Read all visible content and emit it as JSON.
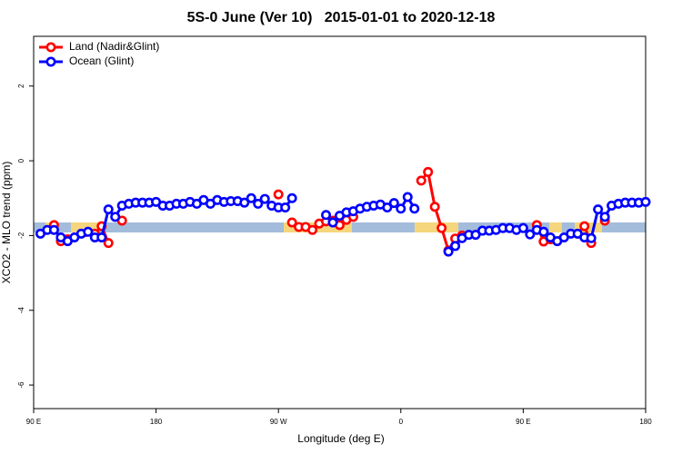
{
  "chart_data": {
    "type": "line",
    "title": "5S-0 June (Ver 10)   2015-01-01 to 2020-12-18",
    "x_label": "Longitude (deg E)",
    "y_label": "XCO2 - MLO trend (ppm)",
    "xlim": [
      90,
      540
    ],
    "xticks": [
      {
        "value": 90,
        "label": "90 E"
      },
      180,
      {
        "value": 270,
        "label": "90 W"
      },
      {
        "value": 360,
        "label": "0"
      },
      {
        "value": 450,
        "label": "90 E"
      },
      {
        "value": 540,
        "label": "180"
      }
    ],
    "ylim": [
      -6.63,
      3.33
    ],
    "yticks": [
      2,
      0,
      -2,
      -4,
      -6
    ],
    "legend_position": "top-left",
    "series": [
      {
        "name": "Land (Nadir&Glint)",
        "color": "#ff0000",
        "x": [
          105,
          110,
          115,
          135,
          140,
          145,
          150,
          155,
          160,
          270,
          275,
          280,
          285,
          290,
          295,
          300,
          305,
          310,
          315,
          320,
          325,
          330,
          375,
          380,
          385,
          390,
          395,
          400,
          405,
          410,
          460,
          465,
          470,
          490,
          495,
          500,
          505,
          510
        ],
        "values": [
          -1.72,
          -2.15,
          -2.1,
          -1.95,
          -1.75,
          -2.2,
          null,
          -1.6,
          null,
          -0.9,
          null,
          -1.65,
          -1.77,
          -1.77,
          -1.85,
          -1.68,
          -1.62,
          -1.6,
          -1.72,
          -1.58,
          -1.5,
          null,
          -0.53,
          -0.3,
          -1.23,
          -1.8,
          -2.4,
          -2.08,
          -2.0,
          null,
          -1.72,
          -2.16,
          -2.1,
          -1.95,
          -1.75,
          -2.2,
          null,
          -1.6
        ]
      },
      {
        "name": "Ocean (Glint)",
        "color": "#0000ff",
        "x": [
          95,
          100,
          105,
          110,
          115,
          120,
          125,
          130,
          135,
          140,
          145,
          150,
          155,
          160,
          165,
          170,
          175,
          180,
          185,
          190,
          195,
          200,
          205,
          210,
          215,
          220,
          225,
          230,
          235,
          240,
          245,
          250,
          255,
          260,
          265,
          270,
          275,
          280,
          285,
          305,
          310,
          315,
          320,
          325,
          330,
          335,
          340,
          345,
          350,
          355,
          360,
          365,
          370,
          375,
          395,
          400,
          405,
          410,
          415,
          420,
          425,
          430,
          435,
          440,
          445,
          450,
          455,
          460,
          465,
          470,
          475,
          480,
          485,
          490,
          495,
          500,
          505,
          510,
          515,
          520,
          525,
          530,
          535,
          540
        ],
        "values": [
          -1.95,
          -1.85,
          -1.85,
          -2.05,
          -2.15,
          -2.05,
          -1.95,
          -1.9,
          -2.05,
          -2.05,
          -1.3,
          -1.5,
          -1.2,
          -1.15,
          -1.12,
          -1.12,
          -1.12,
          -1.1,
          -1.2,
          -1.2,
          -1.15,
          -1.15,
          -1.1,
          -1.15,
          -1.05,
          -1.15,
          -1.05,
          -1.1,
          -1.08,
          -1.08,
          -1.12,
          -1.0,
          -1.15,
          -1.02,
          -1.2,
          -1.25,
          -1.25,
          -1.0,
          null,
          -1.45,
          -1.65,
          -1.47,
          -1.38,
          -1.35,
          -1.28,
          -1.23,
          -1.2,
          -1.17,
          -1.25,
          -1.13,
          -1.28,
          -0.97,
          -1.28,
          null,
          -2.43,
          -2.28,
          -2.07,
          -1.98,
          -1.98,
          -1.87,
          -1.87,
          -1.85,
          -1.8,
          -1.8,
          -1.85,
          -1.8,
          -1.97,
          -1.85,
          -1.9,
          -2.05,
          -2.15,
          -2.05,
          -1.95,
          -1.95,
          -2.05,
          -2.07,
          -1.3,
          -1.5,
          -1.2,
          -1.15,
          -1.12,
          -1.12,
          -1.12,
          -1.1
        ]
      }
    ]
  }
}
